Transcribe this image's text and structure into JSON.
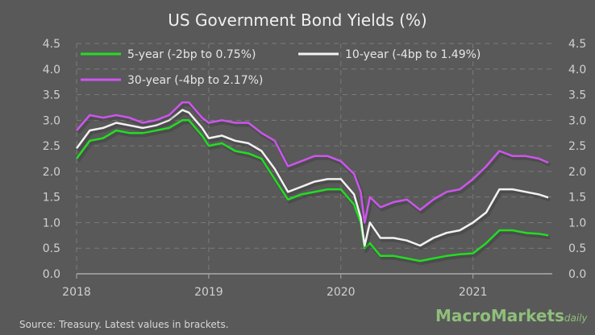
{
  "chart_data": {
    "type": "line",
    "title": "US Government Bond Yields (%)",
    "xlabel": "",
    "ylabel": "",
    "xlim": [
      2018.0,
      2021.6
    ],
    "ylim": [
      0,
      4.5
    ],
    "x_ticks": [
      "2018",
      "2019",
      "2020",
      "2021"
    ],
    "y_ticks": [
      "0.0",
      "0.5",
      "1.0",
      "1.5",
      "2.0",
      "2.5",
      "3.0",
      "3.5",
      "4.0",
      "4.5"
    ],
    "grid": true,
    "legend_position": "top",
    "series": [
      {
        "name": "5-year (-2bp to 0.75%)",
        "color": "#22dd22",
        "x": [
          2018.0,
          2018.1,
          2018.2,
          2018.3,
          2018.4,
          2018.5,
          2018.6,
          2018.7,
          2018.8,
          2018.85,
          2018.95,
          2019.0,
          2019.1,
          2019.2,
          2019.3,
          2019.4,
          2019.5,
          2019.6,
          2019.7,
          2019.8,
          2019.9,
          2020.0,
          2020.1,
          2020.15,
          2020.18,
          2020.22,
          2020.3,
          2020.4,
          2020.5,
          2020.6,
          2020.7,
          2020.8,
          2020.9,
          2021.0,
          2021.1,
          2021.2,
          2021.3,
          2021.4,
          2021.5,
          2021.57
        ],
        "y": [
          2.25,
          2.6,
          2.65,
          2.8,
          2.75,
          2.75,
          2.8,
          2.85,
          3.0,
          3.0,
          2.7,
          2.5,
          2.55,
          2.4,
          2.35,
          2.25,
          1.85,
          1.45,
          1.55,
          1.6,
          1.65,
          1.65,
          1.35,
          1.0,
          0.5,
          0.6,
          0.35,
          0.35,
          0.3,
          0.25,
          0.3,
          0.35,
          0.38,
          0.4,
          0.6,
          0.85,
          0.85,
          0.8,
          0.78,
          0.75
        ]
      },
      {
        "name": "10-year (-4bp to 1.49%)",
        "color": "#f2f2f2",
        "x": [
          2018.0,
          2018.1,
          2018.2,
          2018.3,
          2018.4,
          2018.5,
          2018.6,
          2018.7,
          2018.8,
          2018.85,
          2018.95,
          2019.0,
          2019.1,
          2019.2,
          2019.3,
          2019.4,
          2019.5,
          2019.6,
          2019.7,
          2019.8,
          2019.9,
          2020.0,
          2020.1,
          2020.15,
          2020.18,
          2020.22,
          2020.3,
          2020.4,
          2020.5,
          2020.6,
          2020.7,
          2020.8,
          2020.9,
          2021.0,
          2021.1,
          2021.2,
          2021.3,
          2021.4,
          2021.5,
          2021.57
        ],
        "y": [
          2.45,
          2.8,
          2.85,
          2.95,
          2.9,
          2.85,
          2.9,
          3.0,
          3.2,
          3.15,
          2.85,
          2.65,
          2.7,
          2.6,
          2.55,
          2.4,
          2.05,
          1.6,
          1.7,
          1.8,
          1.85,
          1.85,
          1.55,
          1.1,
          0.55,
          1.0,
          0.7,
          0.7,
          0.65,
          0.55,
          0.7,
          0.8,
          0.85,
          1.0,
          1.2,
          1.65,
          1.65,
          1.6,
          1.55,
          1.49
        ]
      },
      {
        "name": "30-year (-4bp to 2.17%)",
        "color": "#cc55ee",
        "x": [
          2018.0,
          2018.1,
          2018.2,
          2018.3,
          2018.4,
          2018.5,
          2018.6,
          2018.7,
          2018.8,
          2018.85,
          2018.95,
          2019.0,
          2019.1,
          2019.2,
          2019.3,
          2019.4,
          2019.5,
          2019.6,
          2019.7,
          2019.8,
          2019.9,
          2020.0,
          2020.1,
          2020.15,
          2020.18,
          2020.22,
          2020.3,
          2020.4,
          2020.5,
          2020.6,
          2020.7,
          2020.8,
          2020.9,
          2021.0,
          2021.1,
          2021.2,
          2021.3,
          2021.4,
          2021.5,
          2021.57
        ],
        "y": [
          2.8,
          3.1,
          3.05,
          3.1,
          3.05,
          2.95,
          3.0,
          3.1,
          3.35,
          3.35,
          3.05,
          2.95,
          3.0,
          2.95,
          2.95,
          2.75,
          2.6,
          2.1,
          2.2,
          2.3,
          2.3,
          2.2,
          1.95,
          1.6,
          1.0,
          1.5,
          1.3,
          1.4,
          1.45,
          1.25,
          1.45,
          1.6,
          1.65,
          1.85,
          2.1,
          2.4,
          2.3,
          2.3,
          2.25,
          2.17
        ]
      }
    ]
  },
  "footer": {
    "source": "Source: Treasury.  Latest values in brackets.",
    "logo_main": "MacroMarkets",
    "logo_sub": "daily"
  }
}
